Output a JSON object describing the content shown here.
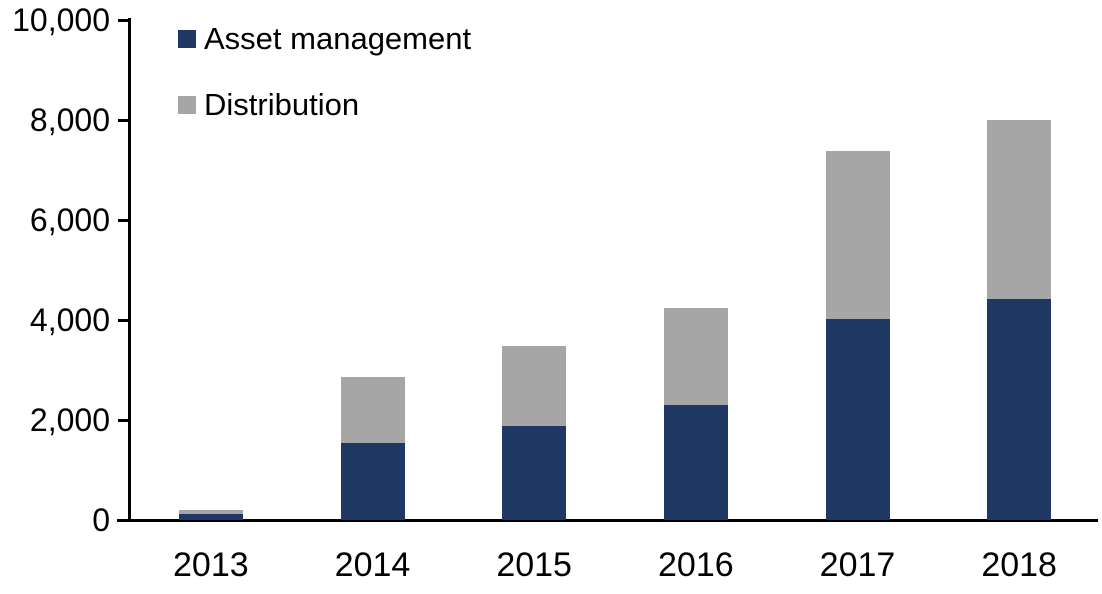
{
  "chart_data": {
    "type": "bar",
    "stacked": true,
    "title": "",
    "xlabel": "",
    "ylabel": "",
    "categories": [
      "2013",
      "2014",
      "2015",
      "2016",
      "2017",
      "2018"
    ],
    "series": [
      {
        "name": "Asset management",
        "color": "#1F3864",
        "values": [
          120,
          1550,
          1890,
          2300,
          4030,
          4415
        ]
      },
      {
        "name": "Distribution",
        "color": "#A6A6A6",
        "values": [
          80,
          1310,
          1600,
          1940,
          3345,
          3585
        ]
      }
    ],
    "ylim": [
      0,
      10000
    ],
    "y_tick_labels": [
      "0",
      "2,000",
      "4,000",
      "6,000",
      "8,000",
      "10,000"
    ],
    "grid": false,
    "legend_position": "top-left",
    "axis_color": "#000000",
    "background_color": "#FFFFFF"
  }
}
